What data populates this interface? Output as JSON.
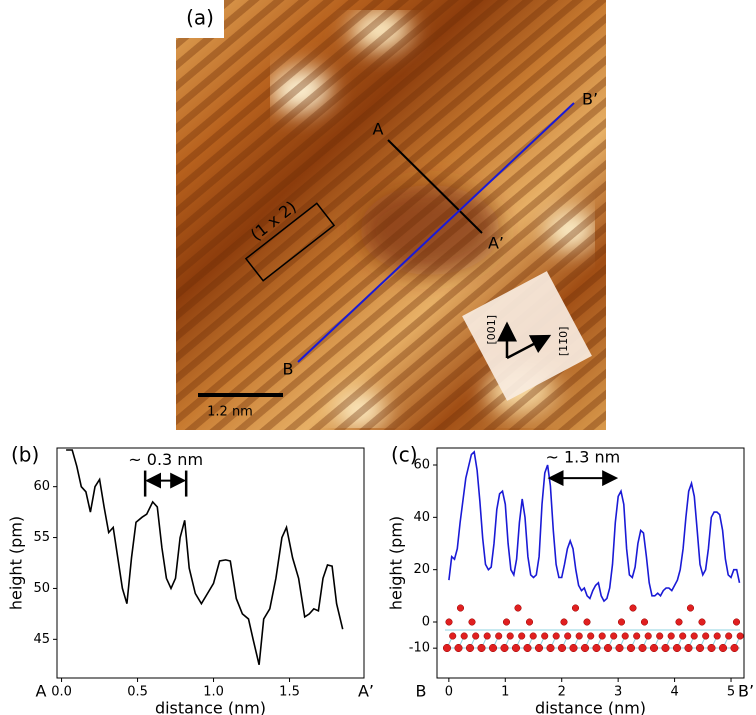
{
  "panel_a": {
    "label": "(a)",
    "line_a_start": "A",
    "line_a_end": "A’",
    "line_b_start": "B",
    "line_b_end": "B’",
    "cell_label": "(1 x 2)",
    "scale_bar": "1.2 nm",
    "direction_vertical": "[001]",
    "direction_horizontal": "[11̄0]"
  },
  "chart_data": [
    {
      "type": "line",
      "panel_label": "(b)",
      "x_label": "distance (nm)",
      "y_label": "height (pm)",
      "x_start_label": "A",
      "x_end_label": "A’",
      "xlim": [
        -0.03,
        1.99
      ],
      "ylim": [
        41.2,
        63.8
      ],
      "xticks": [
        {
          "value": 0,
          "label": "0.0"
        },
        0.5,
        {
          "value": 1,
          "label": "1.0"
        },
        1.5
      ],
      "yticks": [
        45,
        50,
        55,
        60
      ],
      "x": [
        0.03,
        0.07,
        0.1,
        0.13,
        0.16,
        0.19,
        0.22,
        0.25,
        0.28,
        0.31,
        0.34,
        0.37,
        0.4,
        0.43,
        0.46,
        0.49,
        0.53,
        0.56,
        0.6,
        0.63,
        0.66,
        0.69,
        0.72,
        0.75,
        0.78,
        0.81,
        0.84,
        0.88,
        0.92,
        0.96,
        1.0,
        1.04,
        1.08,
        1.11,
        1.15,
        1.19,
        1.23,
        1.26,
        1.3,
        1.33,
        1.37,
        1.41,
        1.45,
        1.48,
        1.52,
        1.56,
        1.6,
        1.63,
        1.66,
        1.69,
        1.72,
        1.75,
        1.78,
        1.81,
        1.85
      ],
      "series": [
        {
          "color": "#000000",
          "values": [
            63.6,
            63.6,
            62,
            60,
            59.5,
            57.5,
            60,
            60.7,
            58,
            55.5,
            56,
            53,
            50,
            48.5,
            53,
            56.5,
            57,
            57.3,
            58.5,
            58,
            54,
            51,
            50,
            51,
            55,
            56.7,
            52,
            49.5,
            48.5,
            49.5,
            50.5,
            52.7,
            52.8,
            52.7,
            49,
            47.5,
            47,
            45,
            42.5,
            47,
            48,
            51,
            55,
            56,
            53,
            51,
            47.2,
            47.5,
            48,
            47.8,
            51,
            52.3,
            52.2,
            48.5,
            46
          ]
        }
      ],
      "annotation": {
        "text": "~ 0.3 nm",
        "x": [
          0.55,
          0.82
        ],
        "y": 60.6,
        "end_bars": true
      }
    },
    {
      "type": "line",
      "panel_label": "(c)",
      "x_label": "distance (nm)",
      "y_label": "height (pm)",
      "x_start_label": "B",
      "x_end_label": "B’",
      "xlim": [
        -0.21,
        5.23
      ],
      "ylim": [
        -21.4,
        66.5
      ],
      "xticks": [
        0,
        1,
        2,
        3,
        4,
        5
      ],
      "yticks": [
        -10,
        0,
        20,
        40,
        60
      ],
      "x": [
        0,
        0.05,
        0.1,
        0.15,
        0.2,
        0.3,
        0.4,
        0.45,
        0.5,
        0.55,
        0.6,
        0.65,
        0.7,
        0.75,
        0.8,
        0.85,
        0.9,
        0.95,
        1.0,
        1.05,
        1.1,
        1.15,
        1.2,
        1.25,
        1.3,
        1.35,
        1.4,
        1.45,
        1.5,
        1.55,
        1.6,
        1.65,
        1.7,
        1.75,
        1.8,
        1.85,
        1.9,
        1.95,
        2.0,
        2.05,
        2.1,
        2.15,
        2.2,
        2.25,
        2.3,
        2.35,
        2.4,
        2.45,
        2.5,
        2.55,
        2.6,
        2.65,
        2.7,
        2.75,
        2.8,
        2.85,
        2.9,
        2.95,
        3.0,
        3.05,
        3.1,
        3.15,
        3.2,
        3.25,
        3.3,
        3.35,
        3.4,
        3.45,
        3.5,
        3.55,
        3.6,
        3.65,
        3.7,
        3.75,
        3.8,
        3.85,
        3.9,
        3.95,
        4.0,
        4.05,
        4.1,
        4.15,
        4.2,
        4.25,
        4.3,
        4.35,
        4.4,
        4.45,
        4.5,
        4.55,
        4.6,
        4.65,
        4.7,
        4.75,
        4.8,
        4.85,
        4.9,
        4.95,
        5.0,
        5.05,
        5.1,
        5.15
      ],
      "series": [
        {
          "color": "#1a1ad6",
          "values": [
            16,
            25,
            24,
            28,
            38,
            55,
            64,
            65,
            58,
            46,
            32,
            22,
            20,
            21,
            30,
            43,
            49,
            50,
            45,
            30,
            20,
            18,
            24,
            38,
            47,
            40,
            25,
            18,
            17,
            18,
            25,
            45,
            57,
            60,
            52,
            35,
            22,
            17,
            17,
            22,
            28,
            31,
            28,
            20,
            14,
            12,
            13,
            10,
            9,
            12,
            14,
            15,
            10,
            8,
            9,
            13,
            22,
            38,
            48,
            50,
            45,
            28,
            18,
            17,
            21,
            30,
            35,
            34,
            25,
            15,
            10,
            10,
            11,
            10,
            12,
            13,
            13,
            12,
            14,
            16,
            20,
            28,
            40,
            50,
            53,
            48,
            35,
            22,
            18,
            20,
            28,
            40,
            42,
            42,
            41,
            35,
            24,
            18,
            17,
            20,
            20,
            15
          ]
        }
      ],
      "annotation": {
        "text": "~ 1.3 nm",
        "x": [
          1.75,
          3.0
        ],
        "y": 55,
        "end_bars": false
      }
    }
  ]
}
